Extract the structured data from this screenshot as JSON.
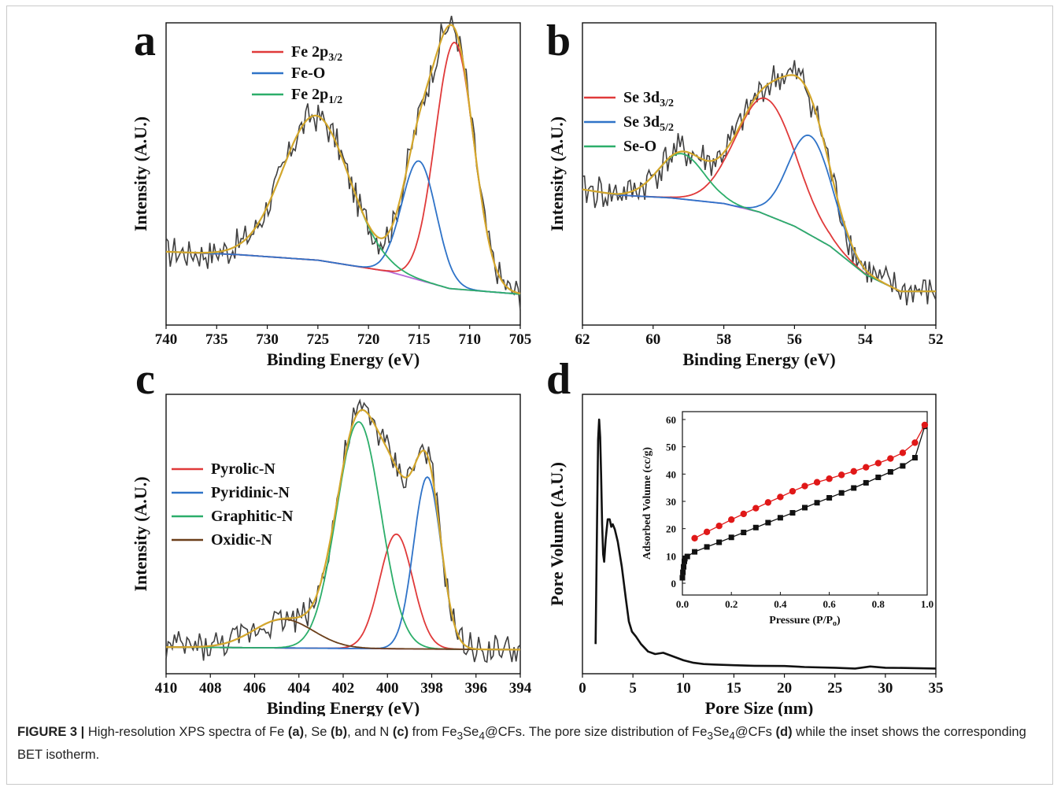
{
  "caption": {
    "label": "FIGURE 3 |",
    "parts": [
      {
        "t": " High-resolution XPS spectra of Fe "
      },
      {
        "t": "(a)",
        "b": true
      },
      {
        "t": ", Se "
      },
      {
        "t": "(b)",
        "b": true
      },
      {
        "t": ", and N "
      },
      {
        "t": "(c)",
        "b": true
      },
      {
        "t": " from Fe"
      },
      {
        "t": "3",
        "sub": true
      },
      {
        "t": "Se"
      },
      {
        "t": "4",
        "sub": true
      },
      {
        "t": "@CFs. The pore size distribution of Fe"
      },
      {
        "t": "3",
        "sub": true
      },
      {
        "t": "Se"
      },
      {
        "t": "4",
        "sub": true
      },
      {
        "t": "@CFs "
      },
      {
        "t": "(d)",
        "b": true
      },
      {
        "t": " while the inset shows the corresponding BET isotherm."
      }
    ]
  },
  "colors": {
    "fit": "#d4a72c",
    "raw": "#404040",
    "background": "#b56ad8",
    "red": "#e03a3a",
    "blue": "#2f73c8",
    "green": "#2cae6a",
    "brown": "#6b3f1a",
    "magenta": "#cc2ad6",
    "isotherm_red": "#e01818",
    "isotherm_black": "#111111"
  },
  "chart_data": [
    {
      "panel": "a",
      "type": "line",
      "xlabel": "Binding Energy (eV)",
      "ylabel": "Intensity (A.U.)",
      "xlim": [
        740,
        705
      ],
      "xticks": [
        740,
        735,
        730,
        725,
        720,
        715,
        710,
        705
      ],
      "legend": [
        {
          "label": "Fe 2p",
          "sub": "3/2",
          "color": "#e03a3a"
        },
        {
          "label": "Fe-O",
          "color": "#2f73c8"
        },
        {
          "label": "Fe 2p",
          "sub": "1/2",
          "color": "#2cae6a"
        }
      ],
      "background_points": [
        [
          740,
          0.22
        ],
        [
          733,
          0.21
        ],
        [
          725,
          0.19
        ],
        [
          718,
          0.15
        ],
        [
          712,
          0.09
        ],
        [
          705,
          0.07
        ]
      ],
      "peaks": [
        {
          "name": "Fe 2p3/2",
          "center": 711.5,
          "height": 0.87,
          "width": 1.9
        },
        {
          "name": "Fe-O",
          "center": 715.0,
          "height": 0.42,
          "width": 1.7
        },
        {
          "name": "Fe 2p1/2",
          "center": 725.2,
          "height": 0.51,
          "width": 3.3
        }
      ],
      "noise": 0.045
    },
    {
      "panel": "b",
      "type": "line",
      "xlabel": "Binding Energy (eV)",
      "ylabel": "Intensity (A.U.)",
      "xlim": [
        62,
        52
      ],
      "xticks": [
        62,
        60,
        58,
        56,
        54,
        52
      ],
      "legend": [
        {
          "label": "Se 3d",
          "sub": "3/2",
          "color": "#e03a3a"
        },
        {
          "label": "Se 3d",
          "sub": "5/2",
          "color": "#2f73c8"
        },
        {
          "label": "Se-O",
          "color": "#2cae6a"
        }
      ],
      "background_points": [
        [
          62,
          0.44
        ],
        [
          61,
          0.42
        ],
        [
          59.5,
          0.41
        ],
        [
          58,
          0.39
        ],
        [
          57,
          0.36
        ],
        [
          56,
          0.31
        ],
        [
          55,
          0.24
        ],
        [
          54,
          0.14
        ],
        [
          53,
          0.08
        ],
        [
          52,
          0.08
        ]
      ],
      "peaks": [
        {
          "name": "Se 3d3/2",
          "center": 56.8,
          "height": 0.41,
          "width": 0.85
        },
        {
          "name": "Se 3d5/2",
          "center": 55.55,
          "height": 0.35,
          "width": 0.62
        },
        {
          "name": "Se-O",
          "center": 59.2,
          "height": 0.16,
          "width": 0.65
        }
      ],
      "noise": 0.05
    },
    {
      "panel": "c",
      "type": "line",
      "xlabel": "Binding Energy (eV)",
      "ylabel": "Intensity (A.U.)",
      "xlim": [
        410,
        394
      ],
      "xticks": [
        410,
        408,
        406,
        404,
        402,
        400,
        398,
        396,
        394
      ],
      "legend": [
        {
          "label": "Pyrolic-N",
          "color": "#e03a3a"
        },
        {
          "label": "Pyridinic-N",
          "color": "#2f73c8"
        },
        {
          "label": "Graphitic-N",
          "color": "#2cae6a"
        },
        {
          "label": "Oxidic-N",
          "color": "#6b3f1a"
        }
      ],
      "background_points": [
        [
          410,
          0.06
        ],
        [
          394,
          0.05
        ]
      ],
      "peaks": [
        {
          "name": "Pyrolic-N",
          "center": 399.6,
          "height": 0.44,
          "width": 0.75
        },
        {
          "name": "Pyridinic-N",
          "center": 398.2,
          "height": 0.66,
          "width": 0.62
        },
        {
          "name": "Graphitic-N",
          "center": 401.3,
          "height": 0.87,
          "width": 1.0
        },
        {
          "name": "Oxidic-N",
          "center": 404.7,
          "height": 0.11,
          "width": 1.35
        }
      ],
      "noise": 0.045
    },
    {
      "panel": "d",
      "type": "line",
      "xlabel": "Pore Size (nm)",
      "ylabel": "Pore Volume (A.U.)",
      "xlim": [
        0,
        35
      ],
      "xticks": [
        0,
        5,
        10,
        15,
        20,
        25,
        30,
        35
      ],
      "series": [
        {
          "x": [
            1.3,
            1.45,
            1.55,
            1.65,
            1.75,
            1.85,
            1.95,
            2.05,
            2.15,
            2.3,
            2.5,
            2.7,
            2.85,
            3.0,
            3.2,
            3.5,
            3.9,
            4.3,
            4.6,
            4.9,
            5.3,
            5.8,
            6.5,
            7.2,
            8.0,
            9.0,
            10.0,
            10.5,
            11.0,
            12.0,
            13.0,
            15.0,
            17.0,
            20.0,
            22.0,
            25.0,
            27.0,
            28.5,
            30.0,
            32.0,
            35.0
          ],
          "y": [
            0.1,
            0.6,
            0.92,
            1.0,
            0.93,
            0.78,
            0.58,
            0.46,
            0.43,
            0.52,
            0.6,
            0.6,
            0.57,
            0.58,
            0.56,
            0.51,
            0.41,
            0.28,
            0.19,
            0.15,
            0.13,
            0.1,
            0.07,
            0.06,
            0.065,
            0.05,
            0.035,
            0.03,
            0.025,
            0.02,
            0.018,
            0.015,
            0.013,
            0.012,
            0.008,
            0.005,
            0.002,
            0.01,
            0.005,
            0.004,
            0.002
          ]
        }
      ]
    },
    {
      "panel": "d-inset",
      "type": "scatter",
      "xlabel": "Pressure (P/Po)",
      "ylabel": "Adsorbed Volume (cc/g)",
      "xlim": [
        0,
        1.0
      ],
      "ylim": [
        0,
        60
      ],
      "xticks": [
        "0.0",
        "0.2",
        "0.4",
        "0.6",
        "0.8",
        "1.0"
      ],
      "yticks": [
        0,
        10,
        20,
        30,
        40,
        50,
        60
      ],
      "series": [
        {
          "kind": "adsorption",
          "marker": "square",
          "color": "#111111",
          "x": [
            0.0,
            0.002,
            0.005,
            0.008,
            0.01,
            0.02,
            0.05,
            0.1,
            0.15,
            0.2,
            0.25,
            0.3,
            0.35,
            0.4,
            0.45,
            0.5,
            0.55,
            0.6,
            0.65,
            0.7,
            0.75,
            0.8,
            0.85,
            0.9,
            0.95,
            0.99
          ],
          "y": [
            2.0,
            4.0,
            6.0,
            8.0,
            9.0,
            9.8,
            11.5,
            13.3,
            15.0,
            16.8,
            18.6,
            20.4,
            22.2,
            24.0,
            25.8,
            27.7,
            29.5,
            31.3,
            33.1,
            34.9,
            36.8,
            38.8,
            40.8,
            43.0,
            46.0,
            57.5
          ]
        },
        {
          "kind": "desorption",
          "marker": "circle",
          "color": "#e01818",
          "x": [
            0.05,
            0.1,
            0.15,
            0.2,
            0.25,
            0.3,
            0.35,
            0.4,
            0.45,
            0.5,
            0.55,
            0.6,
            0.65,
            0.7,
            0.75,
            0.8,
            0.85,
            0.9,
            0.95,
            0.99
          ],
          "y": [
            16.5,
            18.8,
            21.0,
            23.3,
            25.4,
            27.5,
            29.6,
            31.6,
            33.7,
            35.6,
            37.0,
            38.3,
            39.7,
            41.0,
            42.5,
            44.0,
            45.7,
            47.8,
            51.5,
            58.0
          ]
        }
      ]
    }
  ]
}
